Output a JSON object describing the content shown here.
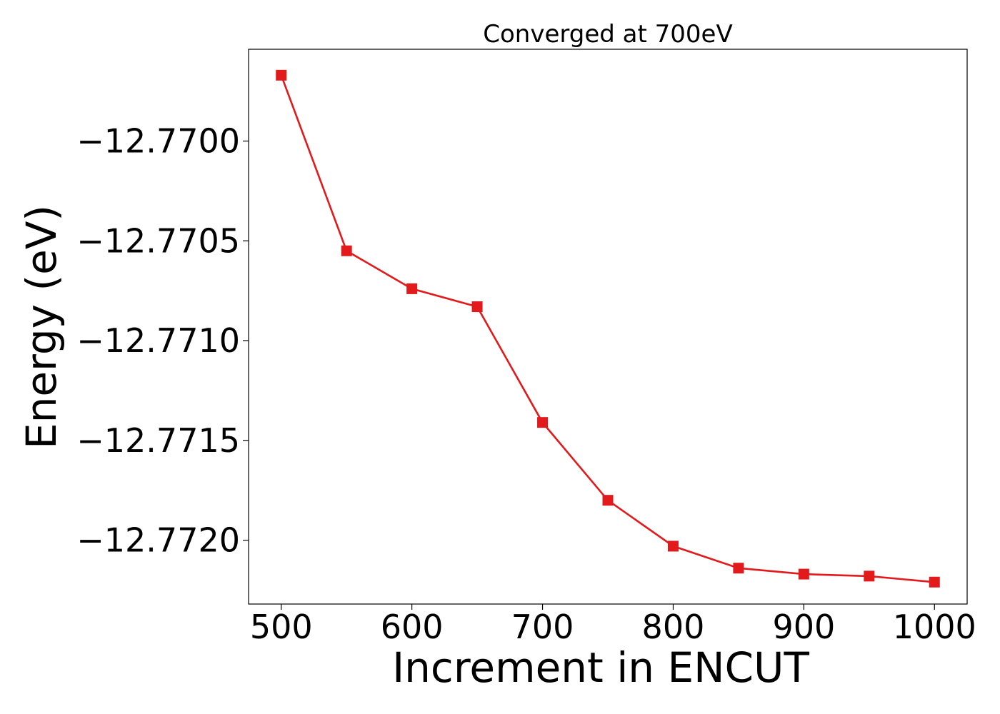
{
  "chart_data": {
    "type": "line",
    "title": "Converged at 700eV",
    "xlabel": "Increment in ENCUT",
    "ylabel": "Energy (eV)",
    "xlim": [
      475,
      1025
    ],
    "ylim": [
      -12.77232,
      -12.76954
    ],
    "xticks": [
      500,
      600,
      700,
      800,
      900,
      1000
    ],
    "xtick_labels": [
      "500",
      "600",
      "700",
      "800",
      "900",
      "1000"
    ],
    "yticks": [
      -12.772,
      -12.7715,
      -12.771,
      -12.7705,
      -12.77
    ],
    "ytick_labels": [
      "−12.7720",
      "−12.7715",
      "−12.7710",
      "−12.7705",
      "−12.7700"
    ],
    "grid": false,
    "series": [
      {
        "color": "#e31a1c",
        "marker": "square",
        "x": [
          500,
          550,
          600,
          650,
          700,
          750,
          800,
          850,
          900,
          950,
          1000
        ],
        "y": [
          -12.76967,
          -12.77055,
          -12.77074,
          -12.77083,
          -12.77141,
          -12.7718,
          -12.77203,
          -12.77214,
          -12.77217,
          -12.77218,
          -12.77221
        ]
      }
    ]
  }
}
